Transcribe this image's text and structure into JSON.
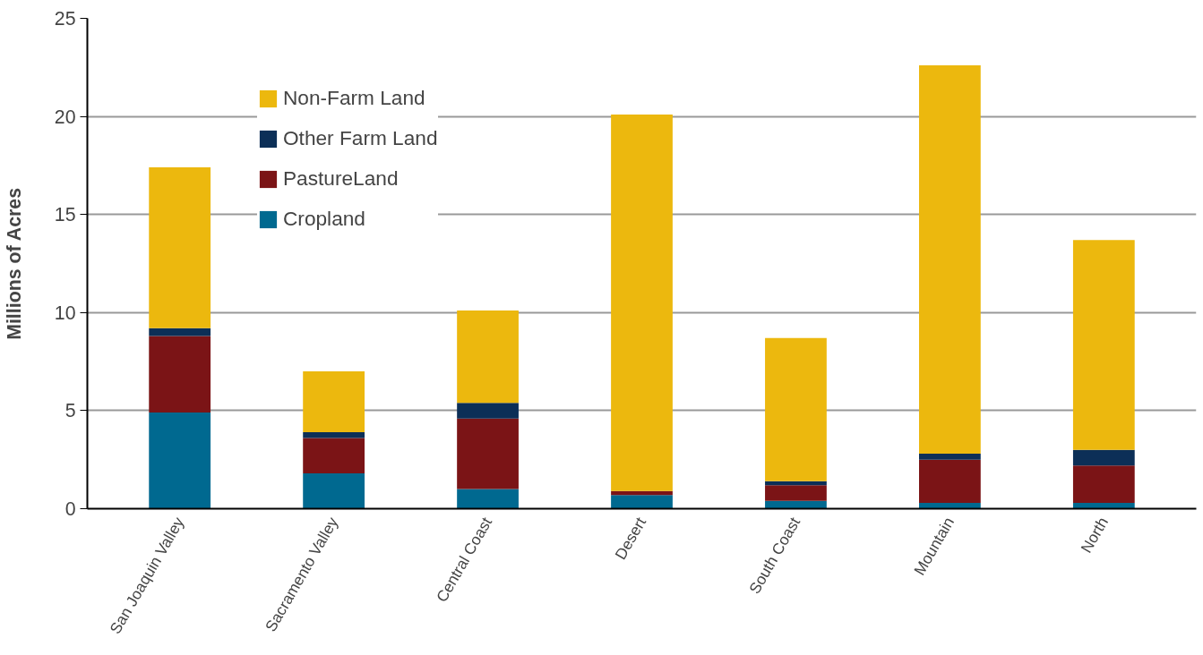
{
  "chart_data": {
    "type": "bar",
    "stacked": true,
    "ylabel": "Millions of Acres",
    "categories": [
      "San Joaquin Valley",
      "Sacramento Valley",
      "Central Coast",
      "Desert",
      "South Coast",
      "Mountain",
      "North"
    ],
    "series": [
      {
        "name": "Cropland",
        "color": "#006990",
        "values": [
          4.9,
          1.8,
          1.0,
          0.7,
          0.4,
          0.3,
          0.3
        ]
      },
      {
        "name": "PastureLand",
        "color": "#7b1416",
        "values": [
          3.9,
          1.8,
          3.6,
          0.2,
          0.8,
          2.2,
          1.9
        ]
      },
      {
        "name": "Other Farm Land",
        "color": "#0c2f57",
        "values": [
          0.4,
          0.3,
          0.8,
          0,
          0.2,
          0.3,
          0.8
        ]
      },
      {
        "name": "Non-Farm Land",
        "color": "#ecb80e",
        "values": [
          8.2,
          3.1,
          4.7,
          19.2,
          7.3,
          19.8,
          10.7
        ]
      }
    ],
    "ylim": [
      0,
      25
    ],
    "yticks": [
      0,
      5,
      10,
      15,
      20,
      25
    ],
    "grid": "y",
    "legend": "top left"
  }
}
